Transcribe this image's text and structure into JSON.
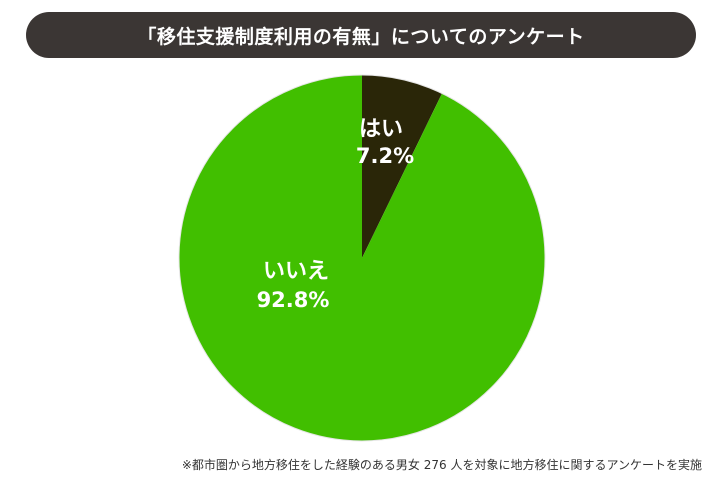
{
  "chart_data": {
    "type": "pie",
    "title": "「移住支援制度利用の有無」についてのアンケート",
    "slices": [
      {
        "label": "はい",
        "value": 7.2,
        "value_label": "7.2%",
        "color": "#2a2608"
      },
      {
        "label": "いいえ",
        "value": 92.8,
        "value_label": "92.8%",
        "color": "#41bf00"
      }
    ],
    "start_angle_deg": 0,
    "direction": "clockwise",
    "legend": "none"
  },
  "footnote": "※都市圏から地方移住をした経験のある男女 276 人を対象に地方移住に関するアンケートを実施"
}
